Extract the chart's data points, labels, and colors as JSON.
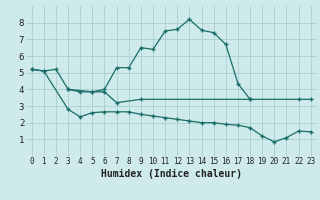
{
  "background_color": "#ceeaea",
  "grid_color": "#aacece",
  "line_color": "#1a6e6a",
  "xlabel": "Humidex (Indice chaleur)",
  "xlim": [
    -0.5,
    23.5
  ],
  "ylim": [
    0,
    9
  ],
  "xticks": [
    0,
    1,
    2,
    3,
    4,
    5,
    6,
    7,
    8,
    9,
    10,
    11,
    12,
    13,
    14,
    15,
    16,
    17,
    18,
    19,
    20,
    21,
    22,
    23
  ],
  "yticks": [
    1,
    2,
    3,
    4,
    5,
    6,
    7,
    8
  ],
  "line1": {
    "x": [
      0,
      1,
      2,
      3,
      4,
      5,
      6,
      7,
      8,
      9,
      10,
      11,
      12,
      13,
      14,
      15,
      16,
      17,
      18
    ],
    "y": [
      5.2,
      5.1,
      5.2,
      4.0,
      3.85,
      3.85,
      4.0,
      5.3,
      5.3,
      6.5,
      6.4,
      7.5,
      7.6,
      8.2,
      7.55,
      7.4,
      6.7,
      4.35,
      3.4
    ]
  },
  "line2": {
    "x": [
      0,
      1,
      3,
      4,
      5,
      6,
      7,
      8,
      9,
      10,
      11,
      12,
      13,
      14,
      15,
      16,
      17,
      18,
      19,
      20,
      21,
      22,
      23
    ],
    "y": [
      5.2,
      5.1,
      2.8,
      2.35,
      2.6,
      2.65,
      2.65,
      2.65,
      2.5,
      2.4,
      2.3,
      2.2,
      2.1,
      2.0,
      2.0,
      1.9,
      1.85,
      1.7,
      1.2,
      0.85,
      1.1,
      1.5,
      1.45
    ]
  },
  "line3": {
    "x": [
      3,
      5,
      6,
      7,
      9,
      18,
      22,
      23
    ],
    "y": [
      4.0,
      3.85,
      3.85,
      3.2,
      3.4,
      3.4,
      3.4,
      3.4
    ]
  }
}
